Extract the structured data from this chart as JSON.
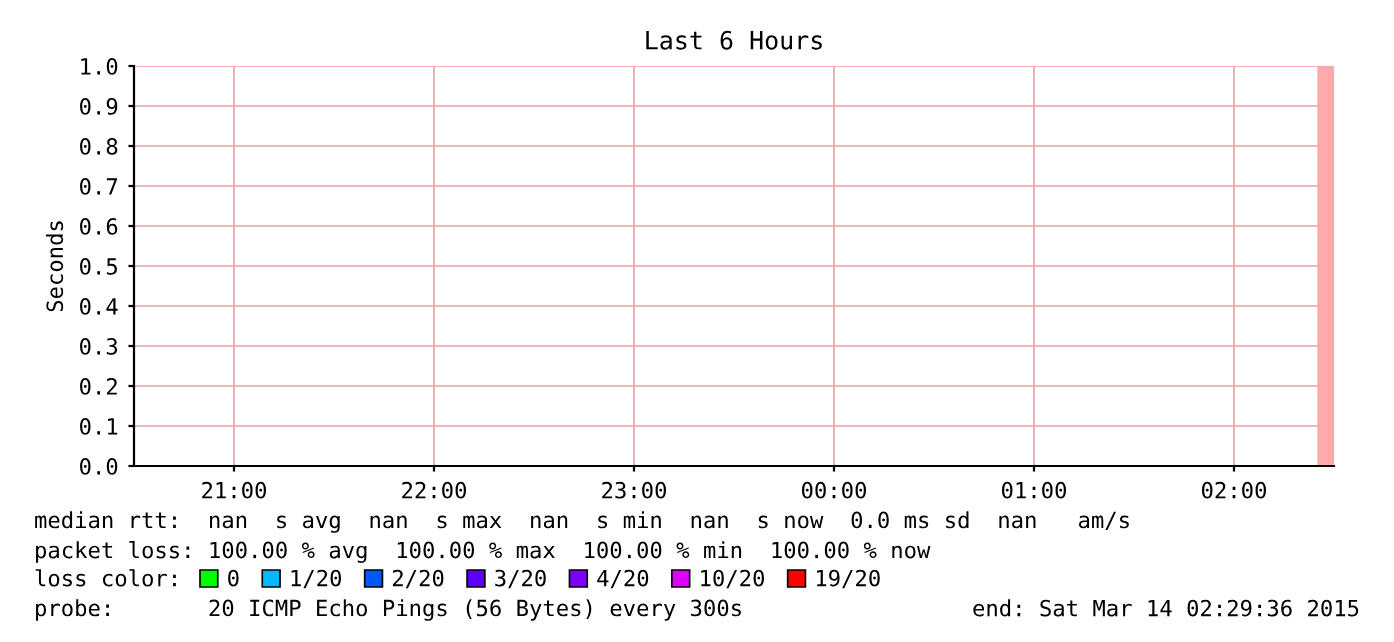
{
  "chart_data": {
    "type": "bar",
    "title": "Last 6 Hours",
    "ylabel": "Seconds",
    "x": [
      "2015-03-14T02:27:30"
    ],
    "series": [
      {
        "color": "#ffaaaa",
        "values": [
          1.0
        ]
      },
      {
        "name": "0",
        "color": "#00ff00",
        "values": [
          null
        ]
      },
      {
        "name": "1/20",
        "color": "#00b8ff",
        "values": [
          null
        ]
      },
      {
        "name": "2/20",
        "color": "#0059ff",
        "values": [
          null
        ]
      },
      {
        "name": "3/20",
        "color": "#5e00ff",
        "values": [
          null
        ]
      },
      {
        "name": "4/20",
        "color": "#7e00ff",
        "values": [
          null
        ]
      },
      {
        "name": "10/20",
        "color": "#dd00ff",
        "values": [
          null
        ]
      },
      {
        "name": "19/20",
        "color": "#ff0000",
        "values": [
          null
        ]
      }
    ],
    "legend": "bottom",
    "legend_title": "loss color:",
    "xlim": [
      "2015-03-13T20:30",
      "2015-03-14T02:30"
    ],
    "xticks": [
      {
        "value": "2015-03-13T21:00",
        "label": "21:00"
      },
      {
        "value": "2015-03-13T22:00",
        "label": "22:00"
      },
      {
        "value": "2015-03-13T23:00",
        "label": "23:00"
      },
      {
        "value": "2015-03-14T00:00",
        "label": "00:00"
      },
      {
        "value": "2015-03-14T01:00",
        "label": "01:00"
      },
      {
        "value": "2015-03-14T02:00",
        "label": "02:00"
      }
    ],
    "ylim": [
      0,
      1.0
    ],
    "yticks": [
      {
        "value": 0,
        "label": "0.0"
      },
      0.1,
      0.2,
      0.3,
      0.4,
      0.5,
      0.6,
      0.7,
      0.8,
      0.9,
      {
        "value": 1.0,
        "label": "1.0"
      }
    ],
    "grid": true,
    "annotations": [
      "median rtt:  nan  s avg  nan  s max  nan  s min  nan  s now  0.0 ms sd  nan   am/s",
      "packet loss: 100.00 % avg  100.00 % max  100.00 % min  100.00 % now",
      "probe:       20 ICMP Echo Pings (56 Bytes) every 300s",
      "end: Sat Mar 14 02:29:36 2015"
    ]
  }
}
